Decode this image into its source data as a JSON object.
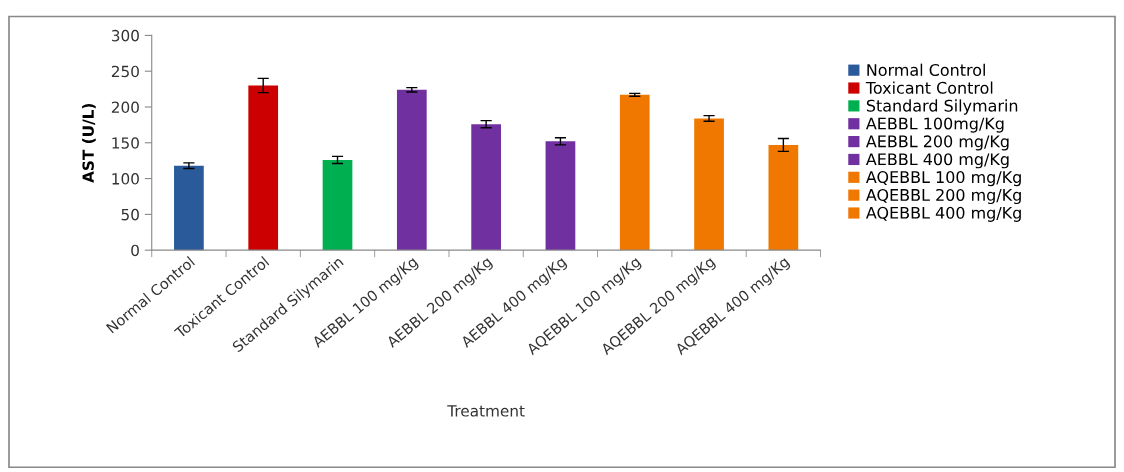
{
  "chart_data": {
    "type": "bar",
    "xlabel": "Treatment",
    "ylabel": "AST (U/L)",
    "categories": [
      "Normal Control",
      "Toxicant Control",
      "Standard Silymarin",
      "AEBBL 100 mg/Kg",
      "AEBBL 200 mg/Kg",
      "AEBBL 400 mg/Kg",
      "AQEBBL 100 mg/Kg",
      "AQEBBL 200 mg/Kg",
      "AQEBBL 400 mg/Kg"
    ],
    "series": [
      {
        "name": "Normal Control",
        "color": "#2a5a9a",
        "values": [
          118,
          null,
          null,
          null,
          null,
          null,
          null,
          null,
          null
        ],
        "errors": [
          4,
          null,
          null,
          null,
          null,
          null,
          null,
          null,
          null
        ]
      },
      {
        "name": "Toxicant Control",
        "color": "#cc0000",
        "values": [
          null,
          230,
          null,
          null,
          null,
          null,
          null,
          null,
          null
        ],
        "errors": [
          null,
          10,
          null,
          null,
          null,
          null,
          null,
          null,
          null
        ]
      },
      {
        "name": "Standard Silymarin",
        "color": "#00b050",
        "values": [
          null,
          null,
          126,
          null,
          null,
          null,
          null,
          null,
          null
        ],
        "errors": [
          null,
          null,
          5,
          null,
          null,
          null,
          null,
          null,
          null
        ]
      },
      {
        "name": "AEBBL 100mg/Kg",
        "color": "#7030a0",
        "values": [
          null,
          null,
          null,
          224,
          null,
          null,
          null,
          null,
          null
        ],
        "errors": [
          null,
          null,
          null,
          3,
          null,
          null,
          null,
          null,
          null
        ]
      },
      {
        "name": "AEBBL 200 mg/Kg",
        "color": "#7030a0",
        "values": [
          null,
          null,
          null,
          null,
          176,
          null,
          null,
          null,
          null
        ],
        "errors": [
          null,
          null,
          null,
          null,
          5,
          null,
          null,
          null,
          null
        ]
      },
      {
        "name": "AEBBL 400 mg/Kg",
        "color": "#7030a0",
        "values": [
          null,
          null,
          null,
          null,
          null,
          152,
          null,
          null,
          null
        ],
        "errors": [
          null,
          null,
          null,
          null,
          null,
          5,
          null,
          null,
          null
        ]
      },
      {
        "name": "AQEBBL 100 mg/Kg",
        "color": "#f07800",
        "values": [
          null,
          null,
          null,
          null,
          null,
          null,
          217,
          null,
          null
        ],
        "errors": [
          null,
          null,
          null,
          null,
          null,
          null,
          2,
          null,
          null
        ]
      },
      {
        "name": "AQEBBL 200 mg/Kg",
        "color": "#f07800",
        "values": [
          null,
          null,
          null,
          null,
          null,
          null,
          null,
          184,
          null
        ],
        "errors": [
          null,
          null,
          null,
          null,
          null,
          null,
          null,
          4,
          null
        ]
      },
      {
        "name": "AQEBBL 400 mg/Kg",
        "color": "#f07800",
        "values": [
          null,
          null,
          null,
          null,
          null,
          null,
          null,
          null,
          147
        ],
        "errors": [
          null,
          null,
          null,
          null,
          null,
          null,
          null,
          null,
          9
        ]
      }
    ],
    "ylim": [
      0,
      300
    ],
    "yticks": [
      0,
      50,
      100,
      150,
      200,
      250,
      300
    ],
    "grid": false,
    "legend": "right"
  }
}
